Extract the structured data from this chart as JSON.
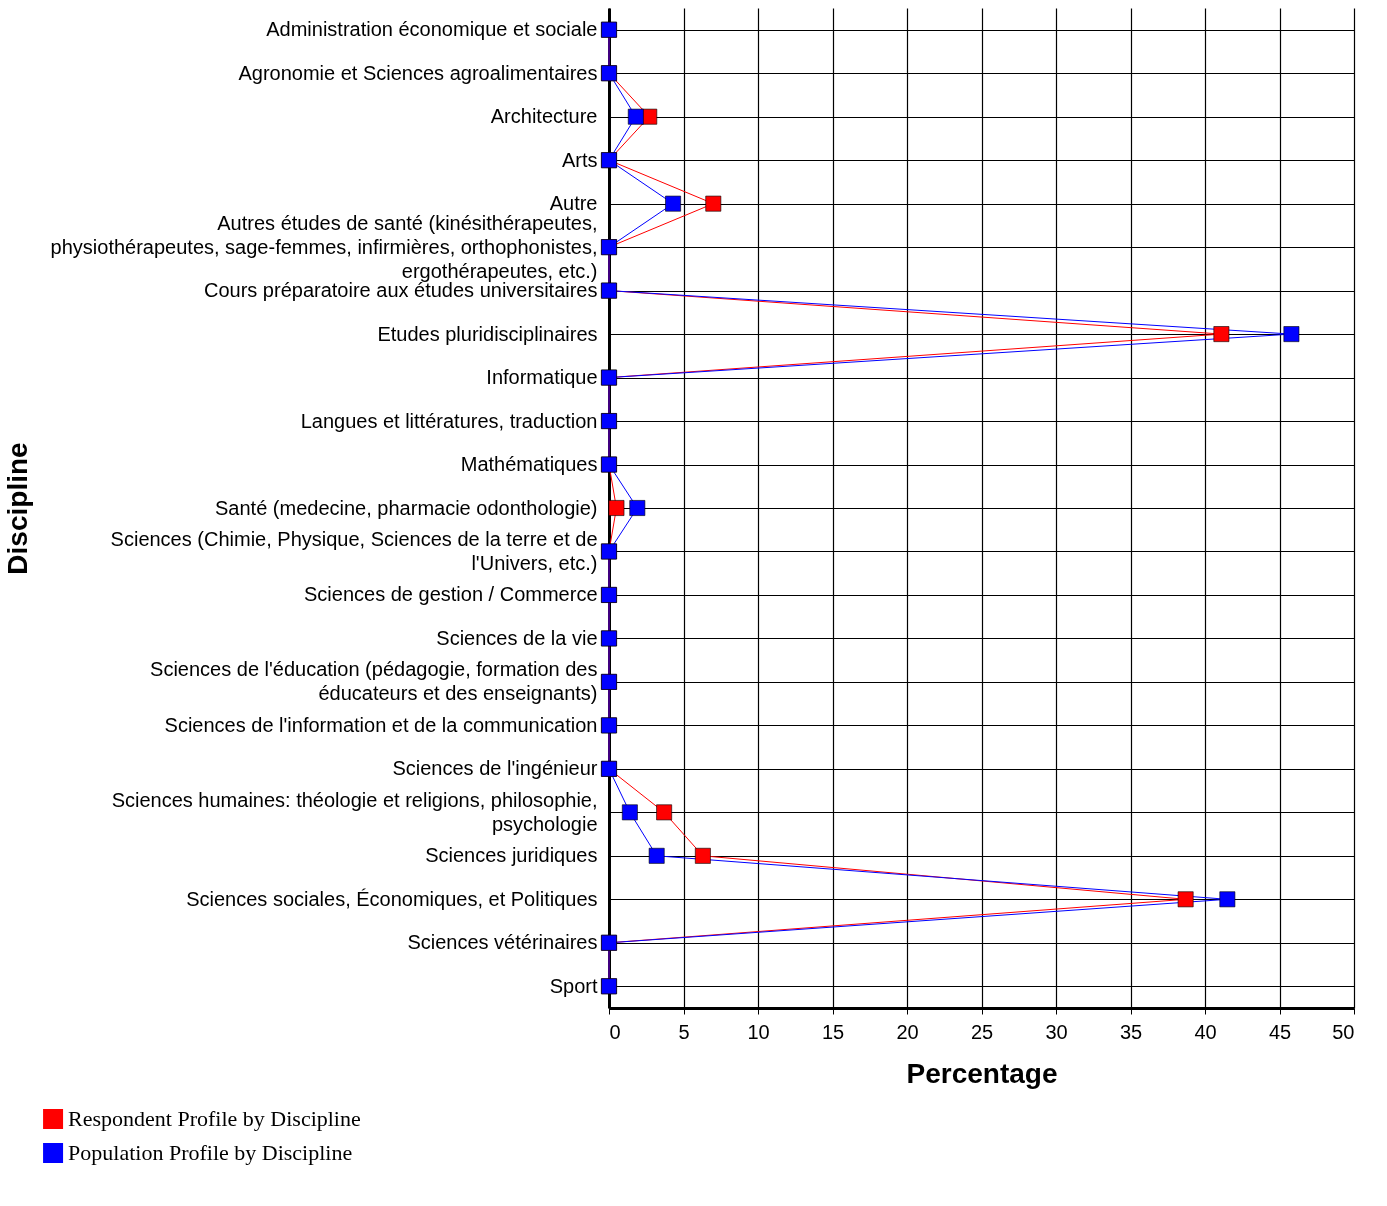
{
  "chart_data": {
    "type": "line",
    "orientation": "horizontal",
    "xlabel": "Percentage",
    "ylabel": "Discipline",
    "categories": [
      "Administration économique et sociale",
      "Agronomie et Sciences agroalimentaires",
      "Architecture",
      "Arts",
      "Autre",
      "Autres études de santé (kinésithérapeutes,\nphysiothérapeutes, sage-femmes, infirmières, orthophonistes,\nergothérapeutes, etc.)",
      "Cours préparatoire aux études universitaires",
      "Etudes pluridisciplinaires",
      "Informatique",
      "Langues et littératures, traduction",
      "Mathématiques",
      "Santé (medecine, pharmacie odonthologie)",
      "Sciences (Chimie, Physique, Sciences de la terre et de\nl'Univers, etc.)",
      "Sciences de gestion / Commerce",
      "Sciences de la vie",
      "Sciences de l'éducation (pédagogie, formation des\néducateurs et des enseignants)",
      "Sciences de l'information et de la communication",
      "Sciences de l'ingénieur",
      "Sciences humaines: théologie et religions, philosophie,\npsychologie",
      "Sciences juridiques",
      "Sciences sociales, Économiques, et Politiques",
      "Sciences vétérinaires",
      "Sport"
    ],
    "series": [
      {
        "name": "Respondent Profile by Discipline",
        "color": "#ff0000",
        "values": [
          0,
          0,
          2.7,
          0,
          7,
          0,
          0,
          41.1,
          0,
          0,
          0,
          0.5,
          0,
          0,
          0,
          0,
          0,
          0,
          3.7,
          6.3,
          38.7,
          0,
          0
        ]
      },
      {
        "name": "Population Profile by Discipline",
        "color": "#0000ff",
        "values": [
          0,
          0,
          1.8,
          0,
          4.3,
          0,
          0,
          45.8,
          0,
          0,
          0,
          1.9,
          0,
          0,
          0,
          0,
          0,
          0,
          1.4,
          3.2,
          41.5,
          0,
          0
        ]
      }
    ],
    "xlim": [
      0,
      50
    ],
    "xticks": [
      0,
      5,
      10,
      15,
      20,
      25,
      30,
      35,
      40,
      45,
      50
    ],
    "grid": true,
    "legend": "bottom left",
    "marker": "square",
    "line_style": "solid"
  }
}
